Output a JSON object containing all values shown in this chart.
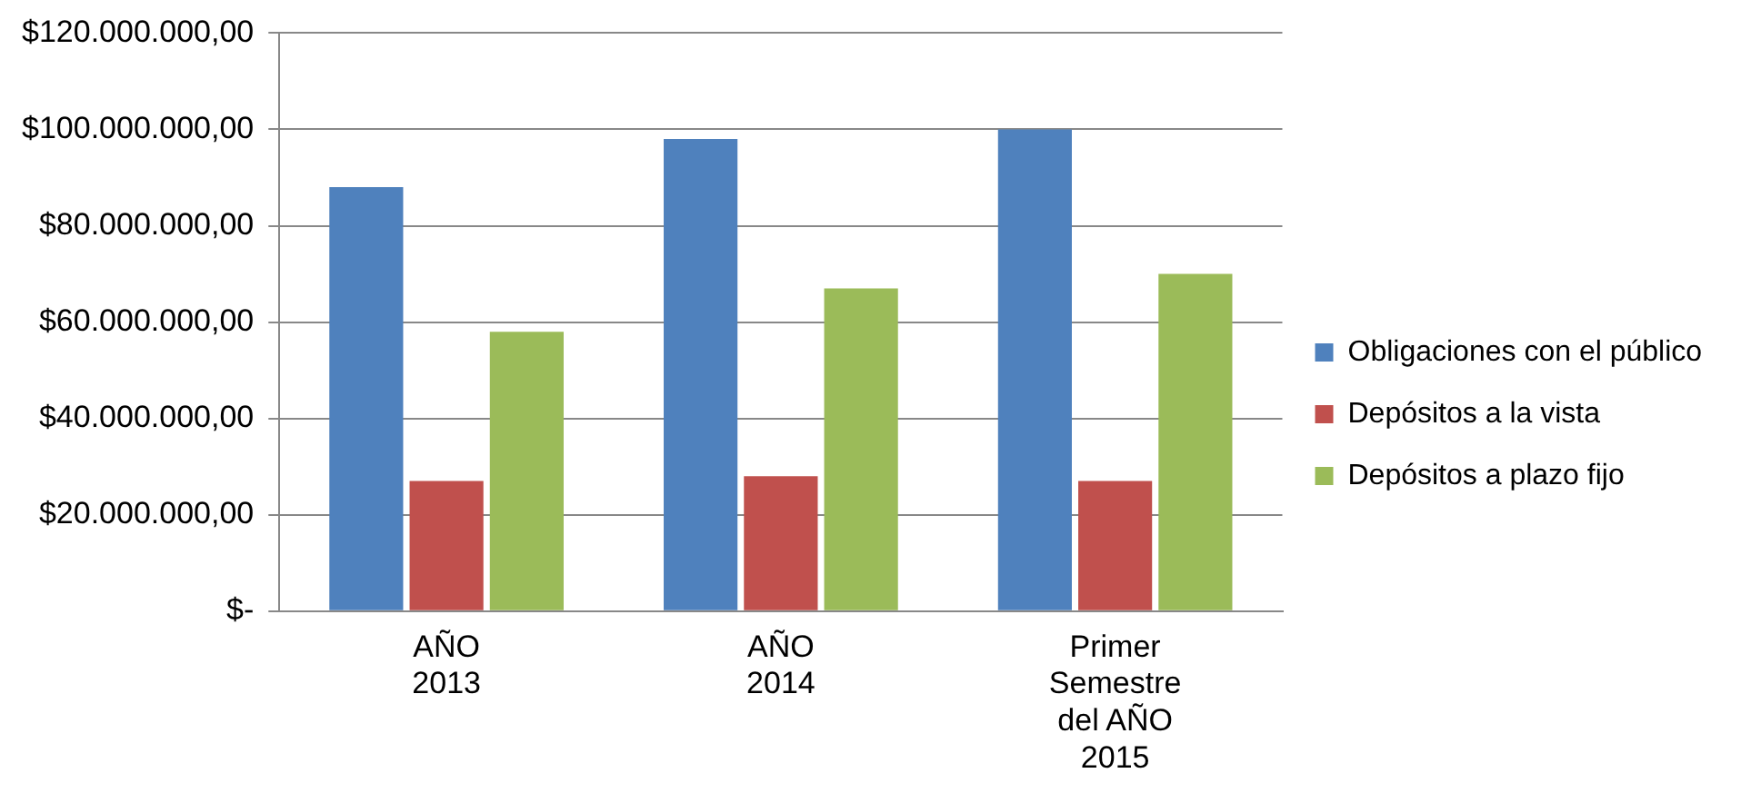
{
  "chart_data": {
    "type": "bar",
    "categories": [
      "AÑO 2013",
      "AÑO 2014",
      "Primer Semestre del AÑO 2015"
    ],
    "series": [
      {
        "name": "Obligaciones con el público",
        "color": "#4f81bd",
        "values": [
          88000000,
          98000000,
          100000000
        ]
      },
      {
        "name": "Depósitos a la vista",
        "color": "#c0504d",
        "values": [
          27000000,
          28000000,
          27000000
        ]
      },
      {
        "name": "Depósitos a plazo fijo",
        "color": "#9bbb59",
        "values": [
          58000000,
          67000000,
          70000000
        ]
      }
    ],
    "ylim": [
      0,
      120000000
    ],
    "yticks": [
      {
        "value": 0,
        "label": "$-"
      },
      {
        "value": 20000000,
        "label": "$20.000.000,00"
      },
      {
        "value": 40000000,
        "label": "$40.000.000,00"
      },
      {
        "value": 60000000,
        "label": "$60.000.000,00"
      },
      {
        "value": 80000000,
        "label": "$80.000.000,00"
      },
      {
        "value": 100000000,
        "label": "$100.000.000,00"
      },
      {
        "value": 120000000,
        "label": "$120.000.000,00"
      }
    ],
    "grid": "y",
    "legend": "right"
  }
}
